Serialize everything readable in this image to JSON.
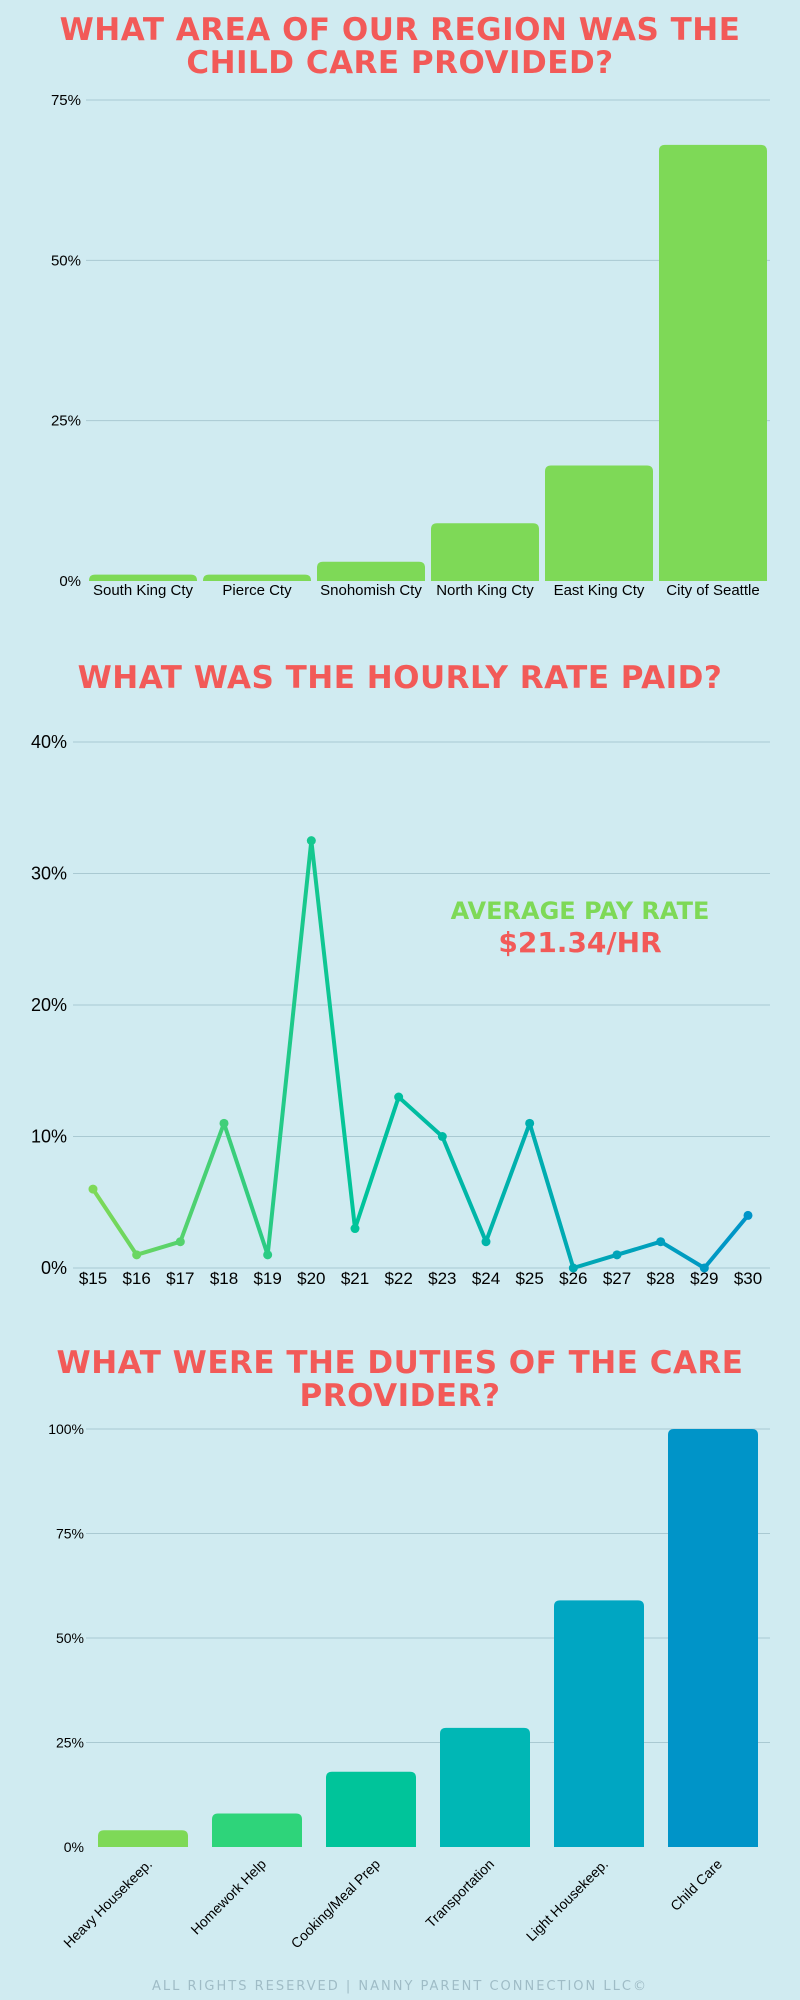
{
  "sections": {
    "region": {
      "title": "WHAT AREA OF OUR REGION WAS THE CHILD CARE PROVIDED?"
    },
    "rate": {
      "title": "WHAT WAS THE HOURLY RATE PAID?",
      "avg_label": "AVERAGE PAY RATE",
      "avg_value": "$21.34/HR"
    },
    "duties": {
      "title": "WHAT WERE THE DUTIES OF THE CARE PROVIDER?"
    }
  },
  "footer": "ALL RIGHTS RESERVED | NANNY PARENT CONNECTION LLC©",
  "colors": {
    "background": "#d0ebf1",
    "title": "#f25a58",
    "region_bars": "#7ed957",
    "line_start": "#7ed957",
    "line_mid": "#00c49a",
    "line_end": "#0094c8",
    "gridline": "#a9c9d2"
  },
  "chart_data": [
    {
      "type": "bar",
      "categories": [
        "South King Cty",
        "Pierce Cty",
        "Snohomish Cty",
        "North King Cty",
        "East King Cty",
        "City of Seattle"
      ],
      "values": [
        1,
        1,
        3,
        9,
        18,
        68
      ],
      "yticks": [
        "0%",
        "25%",
        "50%",
        "75%"
      ],
      "ylim": [
        0,
        75
      ],
      "unit": "%",
      "grid": true
    },
    {
      "type": "line",
      "x": [
        "$15",
        "$16",
        "$17",
        "$18",
        "$19",
        "$20",
        "$21",
        "$22",
        "$23",
        "$24",
        "$25",
        "$26",
        "$27",
        "$28",
        "$29",
        "$30"
      ],
      "values": [
        6,
        1,
        2,
        11,
        1,
        32.5,
        3,
        13,
        10,
        2,
        11,
        0,
        1,
        2,
        0,
        4
      ],
      "yticks": [
        "0%",
        "10%",
        "20%",
        "30%",
        "40%"
      ],
      "ylim": [
        0,
        40
      ],
      "unit": "%",
      "grid": true
    },
    {
      "type": "bar",
      "categories": [
        "Heavy Housekeep.",
        "Homework Help",
        "Cooking/Meal Prep",
        "Transportation",
        "Light Housekeep.",
        "Child Care"
      ],
      "values": [
        4,
        8,
        18,
        28.5,
        59,
        100
      ],
      "yticks": [
        "0%",
        "25%",
        "50%",
        "75%",
        "100%"
      ],
      "ylim": [
        0,
        100
      ],
      "unit": "%",
      "grid": true,
      "bar_colors": [
        "#7ed957",
        "#2ed47a",
        "#00c49a",
        "#00b7b5",
        "#00a6c2",
        "#0094c8"
      ]
    }
  ]
}
